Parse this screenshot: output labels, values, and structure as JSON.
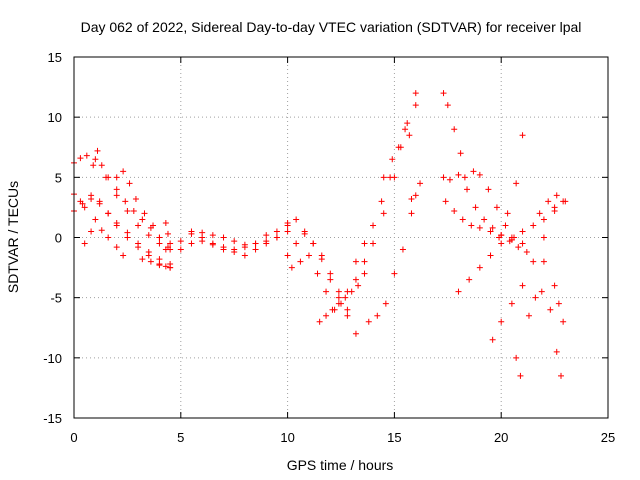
{
  "chart_data": {
    "type": "scatter",
    "title": "Day 062 of 2022, Sidereal Day-to-day VTEC variation (SDTVAR) for receiver lpal",
    "xlabel": "GPS time / hours",
    "ylabel": "SDTVAR / TECUs",
    "xlim": [
      0,
      25
    ],
    "ylim": [
      -15,
      15
    ],
    "xticks": [
      0,
      5,
      10,
      15,
      20,
      25
    ],
    "yticks": [
      -15,
      -10,
      -5,
      0,
      5,
      10,
      15
    ],
    "grid": true,
    "marker": "+",
    "color": "#ff0000",
    "series": [
      {
        "x": [
          0.0,
          0.3,
          0.6,
          1.0,
          1.5,
          2.0,
          2.5,
          3.0,
          3.5,
          4.0,
          4.5
        ],
        "y": [
          6.2,
          6.6,
          6.8,
          6.5,
          5.0,
          3.5,
          2.2,
          1.0,
          0.2,
          -0.5,
          -1.0
        ]
      },
      {
        "x": [
          0.0,
          0.3,
          0.5,
          0.8,
          1.2,
          1.6,
          2.0,
          2.5,
          3.0,
          3.5,
          4.0,
          4.5
        ],
        "y": [
          3.6,
          3.0,
          2.5,
          3.2,
          2.8,
          2.0,
          1.2,
          0.4,
          -0.5,
          -1.2,
          -1.8,
          -2.2
        ]
      },
      {
        "x": [
          0.0,
          0.4,
          0.8,
          1.2,
          1.6,
          2.0,
          2.5,
          3.0,
          3.5,
          4.0,
          4.5
        ],
        "y": [
          2.2,
          2.8,
          3.5,
          3.0,
          2.0,
          1.0,
          0.0,
          -0.8,
          -1.5,
          -2.2,
          -2.5
        ]
      },
      {
        "x": [
          0.5,
          0.8,
          1.0,
          1.3,
          1.6,
          2.0,
          2.3
        ],
        "y": [
          -0.5,
          0.5,
          1.5,
          0.6,
          0.0,
          -0.8,
          -1.5
        ]
      },
      {
        "x": [
          0.9,
          1.1,
          1.3,
          1.6,
          2.0,
          2.4,
          2.8,
          3.2,
          3.6,
          4.0,
          4.4
        ],
        "y": [
          6.0,
          7.2,
          6.0,
          5.0,
          4.0,
          3.0,
          2.2,
          1.5,
          0.8,
          0.0,
          -0.8
        ]
      },
      {
        "x": [
          2.0,
          2.3,
          2.6,
          2.9,
          3.3,
          3.7,
          4.0,
          4.3
        ],
        "y": [
          5.0,
          5.5,
          4.5,
          3.2,
          2.0,
          1.0,
          0.0,
          -1.0
        ]
      },
      {
        "x": [
          3.2,
          3.6,
          4.0,
          4.3,
          4.5
        ],
        "y": [
          -1.8,
          -2.0,
          -2.3,
          -2.4,
          -2.5
        ]
      },
      {
        "x": [
          4.3,
          4.4,
          4.5
        ],
        "y": [
          1.2,
          0.3,
          -0.5
        ]
      },
      {
        "x": [
          5.0,
          5.5,
          6.0,
          6.5,
          7.0,
          7.5,
          8.0,
          8.5,
          9.0,
          9.5,
          10.0
        ],
        "y": [
          -0.3,
          0.3,
          0.4,
          0.2,
          0.0,
          -0.3,
          -0.6,
          -0.5,
          -0.3,
          0.0,
          0.5
        ]
      },
      {
        "x": [
          5.0,
          5.5,
          6.0,
          6.5,
          7.0,
          7.5,
          8.0,
          8.5,
          9.0,
          9.5,
          10.0
        ],
        "y": [
          -1.0,
          -0.5,
          -0.3,
          -0.6,
          -1.0,
          -1.2,
          -1.5,
          -1.0,
          -0.5,
          0.0,
          1.0
        ]
      },
      {
        "x": [
          5.5,
          6.0,
          6.5,
          7.0,
          7.5,
          8.0,
          8.5,
          9.0,
          9.5
        ],
        "y": [
          0.5,
          0.0,
          -0.5,
          -0.8,
          -1.0,
          -0.8,
          -0.5,
          0.2,
          0.5
        ]
      },
      {
        "x": [
          10.0,
          10.4,
          10.8,
          11.2,
          11.6,
          12.0,
          12.4,
          12.8,
          13.2
        ],
        "y": [
          1.2,
          1.5,
          0.5,
          -0.5,
          -1.8,
          -3.5,
          -5.0,
          -6.5,
          -8.0
        ]
      },
      {
        "x": [
          10.0,
          10.4,
          10.8,
          11.2,
          11.6,
          12.0,
          12.4,
          12.8
        ],
        "y": [
          -1.5,
          -0.5,
          0.3,
          -0.5,
          -1.5,
          -3.0,
          -4.5,
          -6.0
        ]
      },
      {
        "x": [
          10.2,
          10.6,
          11.0,
          11.4,
          11.8,
          12.2
        ],
        "y": [
          -2.5,
          -2.0,
          -1.5,
          -3.0,
          -4.5,
          -6.0
        ]
      },
      {
        "x": [
          11.5,
          11.8,
          12.1,
          12.4,
          12.7,
          13.0,
          13.3,
          13.6
        ],
        "y": [
          -7.0,
          -6.5,
          -6.0,
          -5.5,
          -5.0,
          -4.5,
          -4.0,
          -3.0
        ]
      },
      {
        "x": [
          12.5,
          12.8,
          13.2,
          13.6,
          14.0,
          14.5,
          15.0,
          15.5,
          16.0
        ],
        "y": [
          -5.5,
          -4.5,
          -3.5,
          -2.0,
          -0.5,
          2.0,
          5.0,
          9.0,
          12.0
        ]
      },
      {
        "x": [
          13.2,
          13.6,
          14.0,
          14.4,
          14.8,
          15.2,
          15.6,
          16.0
        ],
        "y": [
          -2.0,
          -0.5,
          1.0,
          3.0,
          5.0,
          7.5,
          9.5,
          11.0
        ]
      },
      {
        "x": [
          13.8,
          14.2,
          14.6,
          15.0,
          15.4,
          15.8,
          16.2
        ],
        "y": [
          -7.0,
          -6.5,
          -5.5,
          -3.0,
          -1.0,
          2.0,
          4.5
        ]
      },
      {
        "x": [
          14.5,
          14.9,
          15.3,
          15.7
        ],
        "y": [
          5.0,
          6.5,
          7.5,
          8.5
        ]
      },
      {
        "x": [
          15.8,
          16.0
        ],
        "y": [
          3.2,
          3.5
        ]
      },
      {
        "x": [
          17.3,
          17.5,
          17.8,
          18.1
        ],
        "y": [
          12.0,
          11.0,
          9.0,
          7.0
        ]
      },
      {
        "x": [
          17.3,
          17.6,
          18.0,
          18.4,
          18.8,
          19.2,
          19.6,
          20.0,
          20.4,
          20.8,
          21.2
        ],
        "y": [
          5.0,
          4.8,
          5.2,
          4.0,
          2.5,
          1.5,
          0.8,
          0.2,
          -0.3,
          -0.8,
          -1.2
        ]
      },
      {
        "x": [
          17.4,
          17.8,
          18.2,
          18.6,
          19.0,
          19.5,
          20.0,
          20.5,
          21.0
        ],
        "y": [
          3.0,
          2.2,
          1.5,
          1.0,
          0.8,
          0.5,
          0.2,
          -0.2,
          -0.5
        ]
      },
      {
        "x": [
          18.3,
          18.7,
          19.0,
          19.4,
          19.8,
          20.2,
          20.6
        ],
        "y": [
          5.0,
          5.5,
          5.2,
          4.0,
          2.5,
          1.0,
          0.0
        ]
      },
      {
        "x": [
          18.0,
          18.5,
          19.0,
          19.5,
          20.0,
          20.5,
          21.0,
          21.5,
          22.0,
          22.5,
          23.0
        ],
        "y": [
          -4.5,
          -3.5,
          -2.5,
          -1.5,
          -0.5,
          0.0,
          0.5,
          1.0,
          1.5,
          2.2,
          3.0
        ]
      },
      {
        "x": [
          19.5,
          19.9,
          20.3,
          20.7,
          21.0
        ],
        "y": [
          -1.5,
          0.0,
          2.0,
          4.5,
          8.5
        ]
      },
      {
        "x": [
          19.6,
          20.0,
          20.5,
          21.0,
          21.5,
          22.0,
          22.5
        ],
        "y": [
          -8.5,
          -7.0,
          -5.5,
          -4.0,
          -2.0,
          0.0,
          2.5
        ]
      },
      {
        "x": [
          20.7,
          20.9
        ],
        "y": [
          -10.0,
          -11.5
        ]
      },
      {
        "x": [
          21.3,
          21.6,
          21.9
        ],
        "y": [
          -6.5,
          -5.0,
          -4.5
        ]
      },
      {
        "x": [
          22.0,
          22.3,
          22.6,
          22.8
        ],
        "y": [
          -2.0,
          -6.0,
          -9.5,
          -11.5
        ]
      },
      {
        "x": [
          21.8,
          22.2,
          22.6,
          22.9
        ],
        "y": [
          2.0,
          3.0,
          3.5,
          3.0
        ]
      },
      {
        "x": [
          22.5,
          22.7,
          22.9
        ],
        "y": [
          -4.0,
          -5.5,
          -7.0
        ]
      }
    ]
  }
}
